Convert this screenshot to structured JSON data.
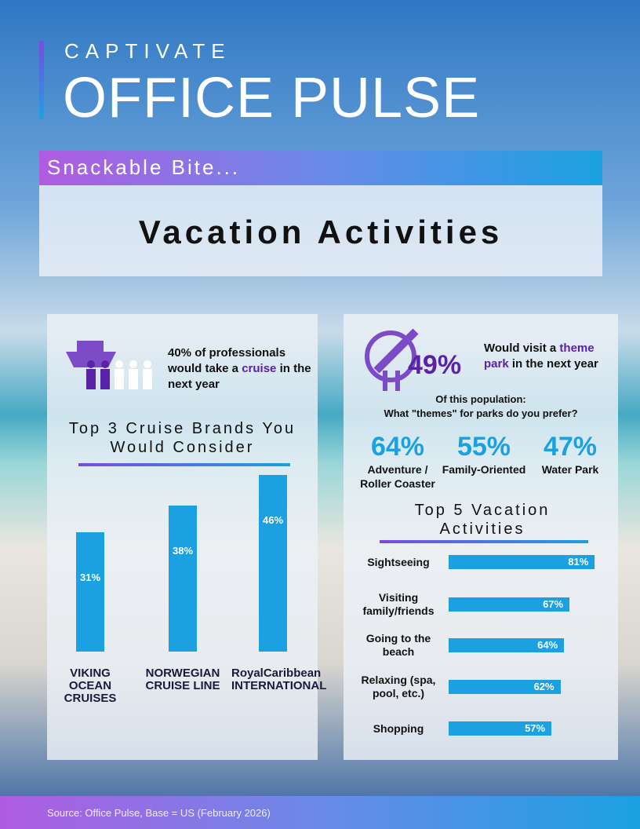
{
  "header": {
    "brand": "CAPTIVATE",
    "title": "OFFICE PULSE",
    "subtitle": "Snackable Bite...",
    "topic": "Vacation Activities"
  },
  "cruise_stat": {
    "text_before": "40% of professionals would take a",
    "highlight": "cruise",
    "text_after": "in the next year"
  },
  "theme_park": {
    "stat": "49%",
    "text_before": "Would visit a",
    "highlight": "theme park",
    "text_after": "in the next year",
    "population": "Of this population:",
    "question": "What \"themes\" for parks do you prefer?",
    "themes": [
      {
        "value": "64%",
        "label": "Adventure / Roller Coaster"
      },
      {
        "value": "55%",
        "label": "Family-Oriented"
      },
      {
        "value": "47%",
        "label": "Water Park"
      }
    ]
  },
  "chart_data": [
    {
      "type": "bar",
      "title": "Top 3 Cruise Brands You Would Consider",
      "categories": [
        "VIKING OCEAN CRUISES",
        "NORWEGIAN CRUISE LINE",
        "RoyalCaribbean INTERNATIONAL"
      ],
      "values": [
        31,
        38,
        46
      ],
      "value_labels": [
        "31%",
        "38%",
        "46%"
      ],
      "color": "#1ba1e2"
    },
    {
      "type": "hbar",
      "title": "Top 5 Vacation Activities",
      "categories": [
        "Sightseeing",
        "Visiting family/friends",
        "Going to the beach",
        "Relaxing (spa, pool, etc.)",
        "Shopping"
      ],
      "values": [
        81,
        67,
        64,
        62,
        57
      ],
      "value_labels": [
        "81%",
        "67%",
        "64%",
        "62%",
        "57%"
      ],
      "color": "#1ba1e2"
    }
  ],
  "footer": "Source: Office Pulse, Base = US (February 2026)"
}
